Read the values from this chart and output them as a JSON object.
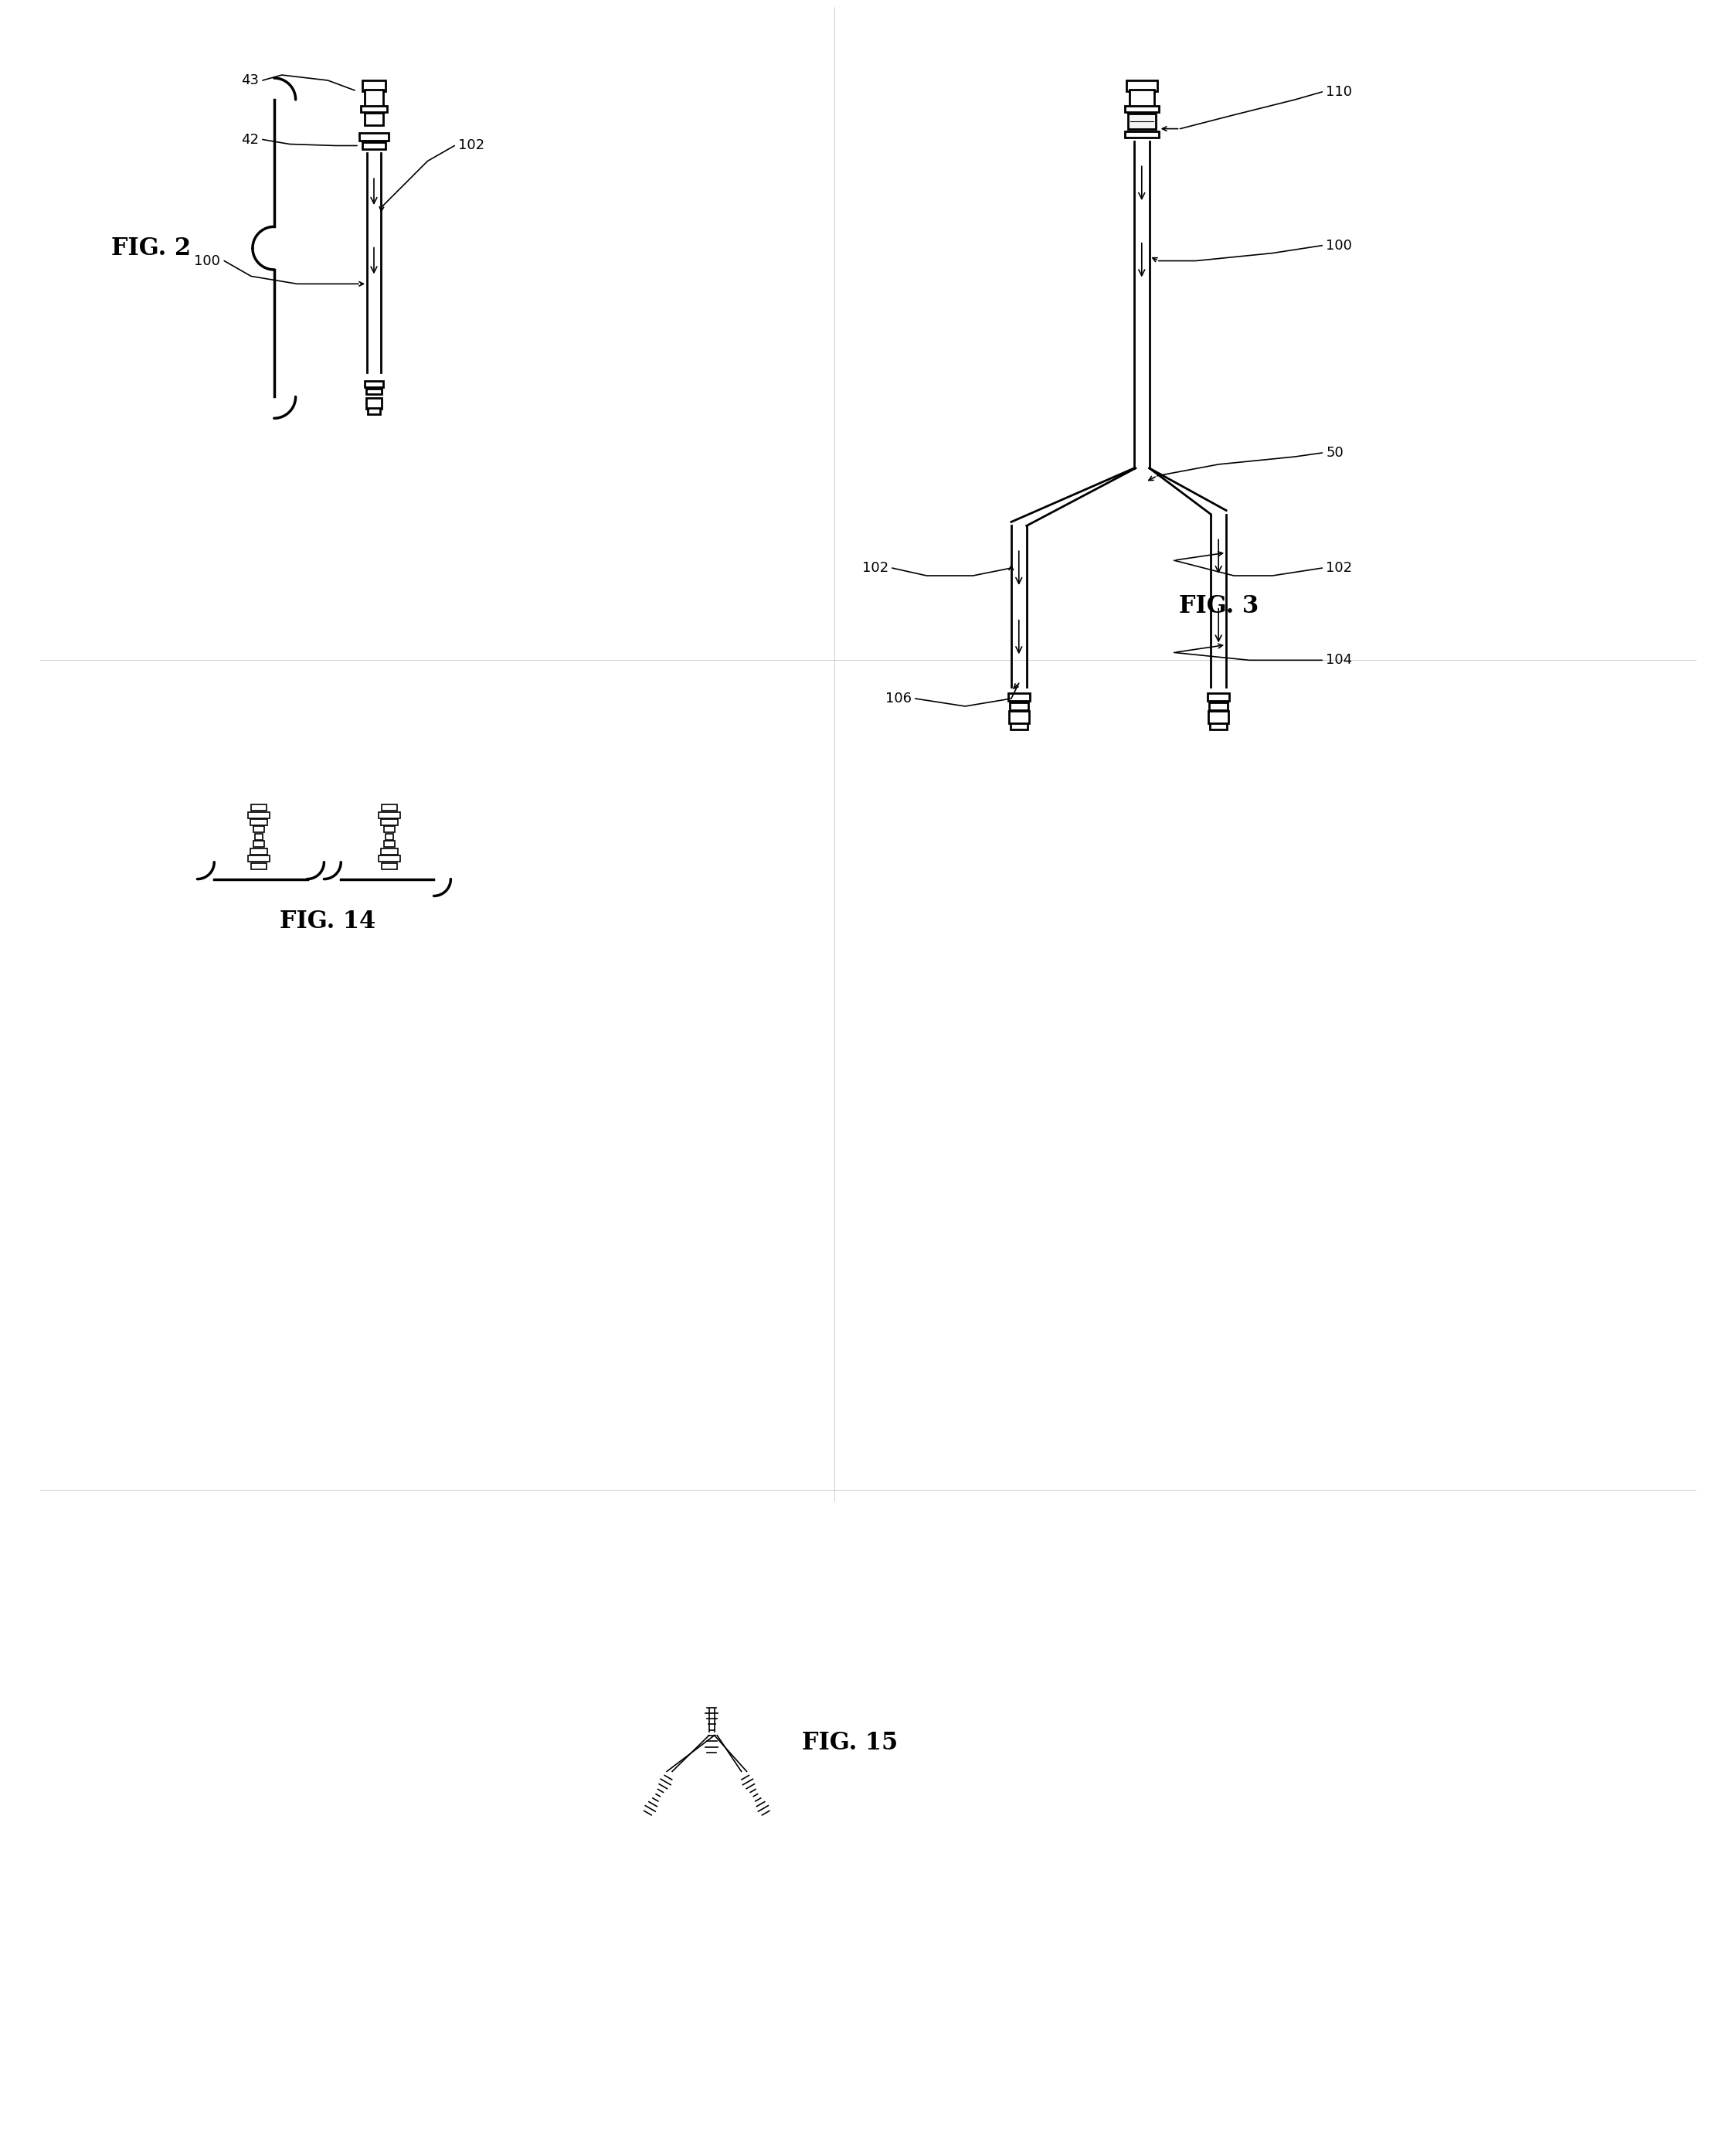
{
  "bg_color": "#ffffff",
  "line_color": "#000000",
  "fig_width": 22.47,
  "fig_height": 27.81,
  "labels": {
    "fig2": "FIG. 2",
    "fig3": "FIG. 3",
    "fig14": "FIG. 14",
    "fig15": "FIG. 15",
    "n43": "43",
    "n42": "42",
    "n100_fig2": "100",
    "n102_fig2": "102",
    "n110": "110",
    "n100_fig3": "100",
    "n50": "50",
    "n102a_fig3": "102",
    "n102b_fig3": "102",
    "n104": "104",
    "n106": "106"
  },
  "lw": 2.0,
  "lw_thin": 1.2,
  "lw_thick": 2.5
}
